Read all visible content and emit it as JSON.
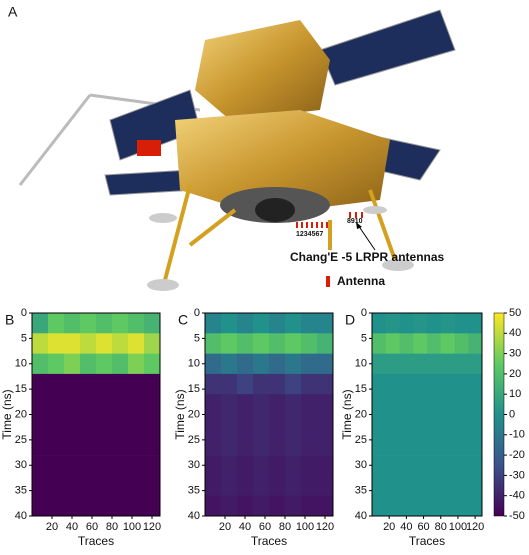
{
  "illustration": {
    "label": "A",
    "annotation": "Chang'E -5 LRPR antennas",
    "legend": "Antenna",
    "numbers_left": "1234567",
    "numbers_right": "8910"
  },
  "chart_data": [
    {
      "type": "heatmap",
      "label": "B",
      "x_label": "Traces",
      "y_label": "Time (ns)",
      "colormap": "viridis",
      "zlim": [
        -50,
        50
      ],
      "xlim": [
        0,
        128
      ],
      "ylim": [
        40,
        0
      ],
      "xticks": [
        20,
        40,
        60,
        80,
        100,
        120
      ],
      "yticks": [
        0,
        5,
        10,
        15,
        20,
        25,
        30,
        35,
        40
      ],
      "xbins": [
        0,
        16,
        32,
        48,
        64,
        80,
        96,
        112,
        128
      ],
      "ybins": [
        0,
        4,
        8,
        12,
        16,
        20,
        24,
        28,
        32,
        36,
        40
      ],
      "values": [
        [
          10,
          25,
          20,
          25,
          20,
          25,
          20,
          15
        ],
        [
          40,
          45,
          45,
          40,
          45,
          40,
          45,
          35
        ],
        [
          20,
          25,
          30,
          20,
          25,
          20,
          30,
          25
        ],
        [
          -50,
          -50,
          -50,
          -50,
          -50,
          -50,
          -50,
          -50
        ],
        [
          -50,
          -50,
          -50,
          -50,
          -50,
          -50,
          -50,
          -50
        ],
        [
          -50,
          -50,
          -50,
          -50,
          -50,
          -50,
          -50,
          -50
        ],
        [
          -50,
          -50,
          -50,
          -50,
          -50,
          -50,
          -50,
          -50
        ],
        [
          -50,
          -50,
          -50,
          -50,
          -50,
          -50,
          -50,
          -50
        ],
        [
          -50,
          -50,
          -50,
          -50,
          -50,
          -50,
          -50,
          -50
        ],
        [
          -50,
          -50,
          -50,
          -50,
          -50,
          -50,
          -50,
          -50
        ]
      ]
    },
    {
      "type": "heatmap",
      "label": "C",
      "x_label": "Traces",
      "y_label": "Time (ns)",
      "colormap": "viridis",
      "zlim": [
        -50,
        50
      ],
      "xlim": [
        0,
        128
      ],
      "ylim": [
        40,
        0
      ],
      "xticks": [
        20,
        40,
        60,
        80,
        100,
        120
      ],
      "yticks": [
        0,
        5,
        10,
        15,
        20,
        25,
        30,
        35,
        40
      ],
      "xbins": [
        0,
        16,
        32,
        48,
        64,
        80,
        96,
        112,
        128
      ],
      "ybins": [
        0,
        4,
        8,
        12,
        16,
        20,
        24,
        28,
        32,
        36,
        40
      ],
      "values": [
        [
          -5,
          0,
          -5,
          0,
          -5,
          0,
          -5,
          -5
        ],
        [
          20,
          25,
          20,
          25,
          20,
          25,
          20,
          15
        ],
        [
          -15,
          -10,
          -15,
          -10,
          -15,
          -10,
          -15,
          -15
        ],
        [
          -35,
          -35,
          -30,
          -35,
          -35,
          -30,
          -35,
          -35
        ],
        [
          -40,
          -38,
          -40,
          -38,
          -40,
          -38,
          -40,
          -40
        ],
        [
          -40,
          -38,
          -40,
          -38,
          -40,
          -38,
          -40,
          -40
        ],
        [
          -40,
          -38,
          -40,
          -38,
          -40,
          -38,
          -40,
          -40
        ],
        [
          -42,
          -40,
          -42,
          -40,
          -42,
          -40,
          -42,
          -42
        ],
        [
          -42,
          -40,
          -42,
          -40,
          -42,
          -40,
          -42,
          -42
        ],
        [
          -44,
          -42,
          -44,
          -42,
          -44,
          -42,
          -44,
          -44
        ]
      ]
    },
    {
      "type": "heatmap",
      "label": "D",
      "x_label": "Traces",
      "y_label": "Time (ns)",
      "colormap": "viridis",
      "zlim": [
        -50,
        50
      ],
      "xlim": [
        0,
        128
      ],
      "ylim": [
        40,
        0
      ],
      "xticks": [
        20,
        40,
        60,
        80,
        100,
        120
      ],
      "yticks": [
        0,
        5,
        10,
        15,
        20,
        25,
        30,
        35,
        40
      ],
      "xbins": [
        0,
        16,
        32,
        48,
        64,
        80,
        96,
        112,
        128
      ],
      "ybins": [
        0,
        4,
        8,
        12,
        16,
        20,
        24,
        28,
        32,
        36,
        40
      ],
      "values": [
        [
          0,
          2,
          0,
          2,
          0,
          2,
          0,
          0
        ],
        [
          20,
          25,
          20,
          25,
          20,
          25,
          20,
          15
        ],
        [
          5,
          5,
          5,
          5,
          5,
          5,
          5,
          5
        ],
        [
          0,
          0,
          0,
          0,
          0,
          0,
          0,
          0
        ],
        [
          0,
          0,
          0,
          0,
          0,
          0,
          0,
          0
        ],
        [
          0,
          0,
          0,
          0,
          0,
          0,
          0,
          0
        ],
        [
          0,
          0,
          0,
          0,
          0,
          0,
          0,
          0
        ],
        [
          0,
          0,
          0,
          0,
          0,
          0,
          0,
          0
        ],
        [
          0,
          0,
          0,
          0,
          0,
          0,
          0,
          0
        ],
        [
          0,
          0,
          0,
          0,
          0,
          0,
          0,
          0
        ]
      ],
      "colorbar_ticks": [
        -50,
        -40,
        -30,
        -20,
        -10,
        0,
        10,
        20,
        30,
        40,
        50
      ]
    }
  ]
}
